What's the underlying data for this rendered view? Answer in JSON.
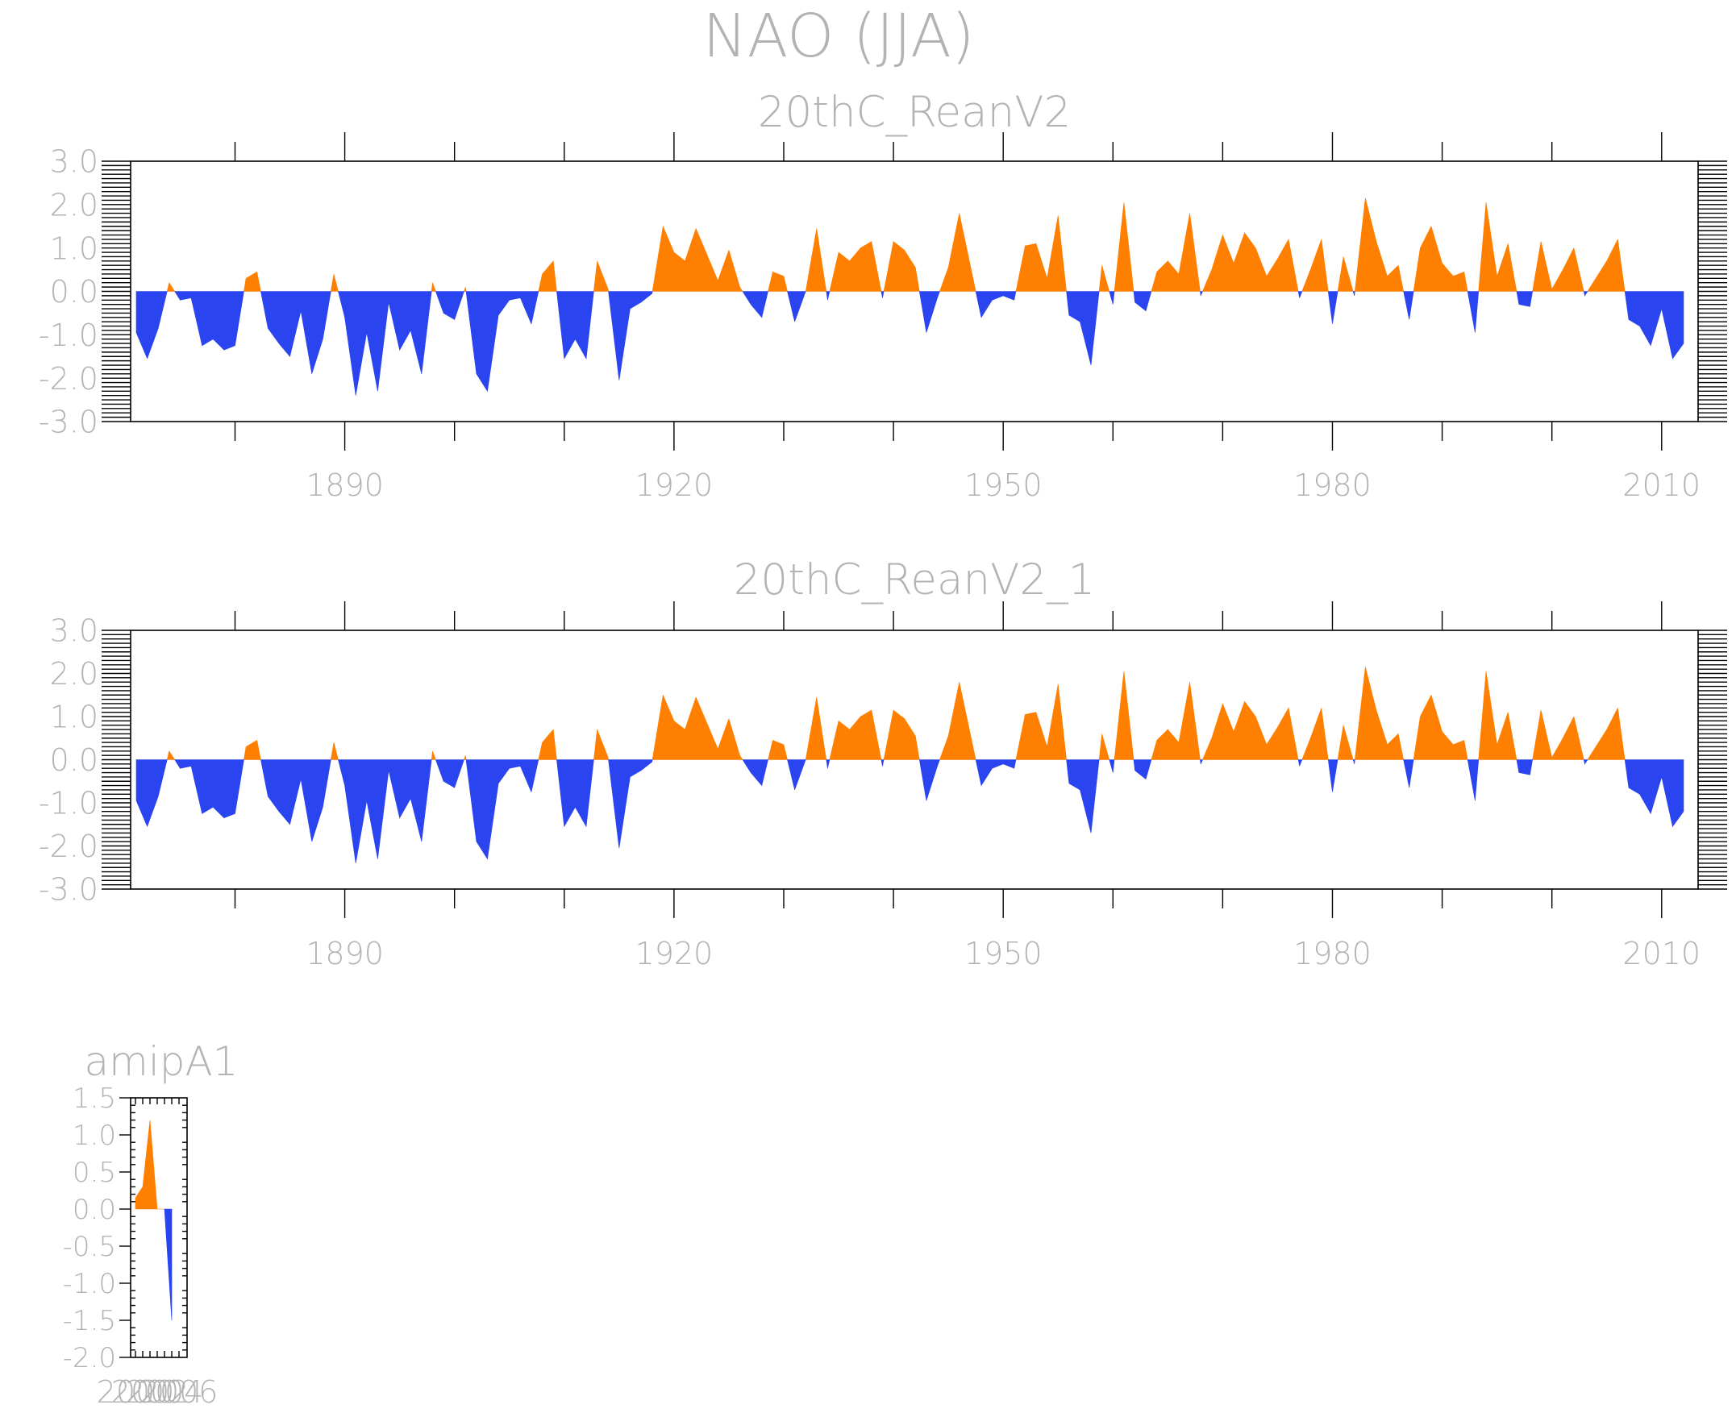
{
  "figure": {
    "title": "NAO (JJA)"
  },
  "colors": {
    "positive": "#ff8000",
    "negative": "#2a45f0",
    "frame": "#000000",
    "text": "#b3b3b3"
  },
  "chart_data": [
    {
      "type": "area",
      "title": "20thC_ReanV2",
      "xlabel": "",
      "ylabel": "",
      "x_start": 1871,
      "xlim": [
        1871,
        2012
      ],
      "ylim": [
        -3.0,
        3.0
      ],
      "y_ticks": [
        3.0,
        2.0,
        1.0,
        0.0,
        -1.0,
        -2.0,
        -3.0
      ],
      "y_tick_labels": [
        "3.0",
        "2.0",
        "1.0",
        "0.0",
        "-1.0",
        "-2.0",
        "-3.0"
      ],
      "x_ticks": [
        1890,
        1920,
        1950,
        1980,
        2010
      ],
      "x_minor_ticks": [
        1880,
        1900,
        1910,
        1930,
        1940,
        1960,
        1970,
        1990,
        2000
      ],
      "x_tick_labels": [
        "1890",
        "1920",
        "1950",
        "1980",
        "2010"
      ],
      "values": [
        -0.95,
        -1.55,
        -0.85,
        0.2,
        -0.2,
        -0.15,
        -1.25,
        -1.1,
        -1.35,
        -1.25,
        0.3,
        0.45,
        -0.85,
        -1.2,
        -1.5,
        -0.45,
        -1.9,
        -1.1,
        0.4,
        -0.6,
        -2.4,
        -0.95,
        -2.3,
        -0.25,
        -1.35,
        -0.9,
        -1.9,
        0.2,
        -0.5,
        -0.65,
        0.1,
        -1.9,
        -2.3,
        -0.55,
        -0.2,
        -0.15,
        -0.75,
        0.4,
        0.7,
        -1.55,
        -1.1,
        -1.55,
        0.7,
        0.05,
        -2.05,
        -0.4,
        -0.25,
        -0.05,
        1.5,
        0.9,
        0.7,
        1.45,
        0.85,
        0.25,
        0.95,
        0.1,
        -0.3,
        -0.6,
        0.45,
        0.35,
        -0.7,
        0.0,
        1.45,
        -0.2,
        0.9,
        0.7,
        1.0,
        1.15,
        -0.15,
        1.15,
        0.95,
        0.55,
        -0.95,
        -0.15,
        0.55,
        1.8,
        0.6,
        -0.6,
        -0.2,
        -0.1,
        -0.2,
        1.05,
        1.1,
        0.3,
        1.75,
        -0.55,
        -0.7,
        -1.7,
        0.6,
        -0.3,
        2.05,
        -0.25,
        -0.45,
        0.45,
        0.7,
        0.4,
        1.8,
        -0.1,
        0.5,
        1.3,
        0.65,
        1.35,
        1.0,
        0.35,
        0.75,
        1.2,
        -0.15,
        0.5,
        1.2,
        -0.75,
        0.8,
        -0.1,
        2.15,
        1.15,
        0.35,
        0.6,
        -0.65,
        1.0,
        1.5,
        0.65,
        0.35,
        0.45,
        -0.95,
        2.05,
        0.35,
        1.1,
        -0.3,
        -0.35,
        1.15,
        0.05,
        0.5,
        1.0,
        -0.1,
        0.3,
        0.7,
        1.2,
        -0.65,
        -0.8,
        -1.25,
        -0.4,
        -1.55,
        -1.2
      ]
    },
    {
      "type": "area",
      "title": "20thC_ReanV2_1",
      "xlabel": "",
      "ylabel": "",
      "x_start": 1871,
      "xlim": [
        1871,
        2012
      ],
      "ylim": [
        -3.0,
        3.0
      ],
      "y_ticks": [
        3.0,
        2.0,
        1.0,
        0.0,
        -1.0,
        -2.0,
        -3.0
      ],
      "y_tick_labels": [
        "3.0",
        "2.0",
        "1.0",
        "0.0",
        "-1.0",
        "-2.0",
        "-3.0"
      ],
      "x_ticks": [
        1890,
        1920,
        1950,
        1980,
        2010
      ],
      "x_minor_ticks": [
        1880,
        1900,
        1910,
        1930,
        1940,
        1960,
        1970,
        1990,
        2000
      ],
      "x_tick_labels": [
        "1890",
        "1920",
        "1950",
        "1980",
        "2010"
      ],
      "values": [
        -0.95,
        -1.55,
        -0.85,
        0.2,
        -0.2,
        -0.15,
        -1.25,
        -1.1,
        -1.35,
        -1.25,
        0.3,
        0.45,
        -0.85,
        -1.2,
        -1.5,
        -0.45,
        -1.9,
        -1.1,
        0.4,
        -0.6,
        -2.4,
        -0.95,
        -2.3,
        -0.25,
        -1.35,
        -0.9,
        -1.9,
        0.2,
        -0.5,
        -0.65,
        0.1,
        -1.9,
        -2.3,
        -0.55,
        -0.2,
        -0.15,
        -0.75,
        0.4,
        0.7,
        -1.55,
        -1.1,
        -1.55,
        0.7,
        0.05,
        -2.05,
        -0.4,
        -0.25,
        -0.05,
        1.5,
        0.9,
        0.7,
        1.45,
        0.85,
        0.25,
        0.95,
        0.1,
        -0.3,
        -0.6,
        0.45,
        0.35,
        -0.7,
        0.0,
        1.45,
        -0.2,
        0.9,
        0.7,
        1.0,
        1.15,
        -0.15,
        1.15,
        0.95,
        0.55,
        -0.95,
        -0.15,
        0.55,
        1.8,
        0.6,
        -0.6,
        -0.2,
        -0.1,
        -0.2,
        1.05,
        1.1,
        0.3,
        1.75,
        -0.55,
        -0.7,
        -1.7,
        0.6,
        -0.3,
        2.05,
        -0.25,
        -0.45,
        0.45,
        0.7,
        0.4,
        1.8,
        -0.1,
        0.5,
        1.3,
        0.65,
        1.35,
        1.0,
        0.35,
        0.75,
        1.2,
        -0.15,
        0.5,
        1.2,
        -0.75,
        0.8,
        -0.1,
        2.15,
        1.15,
        0.35,
        0.6,
        -0.65,
        1.0,
        1.5,
        0.65,
        0.35,
        0.45,
        -0.95,
        2.05,
        0.35,
        1.1,
        -0.3,
        -0.35,
        1.15,
        0.05,
        0.5,
        1.0,
        -0.1,
        0.3,
        0.7,
        1.2,
        -0.65,
        -0.8,
        -1.25,
        -0.4,
        -1.55,
        -1.2
      ]
    },
    {
      "type": "area",
      "title": "amipA1",
      "xlabel": "",
      "ylabel": "",
      "x_start": 2000,
      "xlim": [
        2000,
        2006
      ],
      "ylim": [
        -2.0,
        1.5
      ],
      "y_ticks": [
        1.5,
        1.0,
        0.5,
        0.0,
        -0.5,
        -1.0,
        -1.5,
        -2.0
      ],
      "y_tick_labels": [
        "1.5",
        "1.0",
        "0.5",
        "0.0",
        "-0.5",
        "-1.0",
        "-1.5",
        "-2.0"
      ],
      "x_ticks": [
        2000,
        2002,
        2004,
        2006
      ],
      "x_minor_ticks": [
        2001,
        2003,
        2005
      ],
      "x_tick_labels": [
        "2000",
        "2002",
        "2004",
        "2006"
      ],
      "values": [
        0.15,
        0.3,
        1.2,
        0.0,
        0.0,
        -1.5
      ]
    }
  ]
}
